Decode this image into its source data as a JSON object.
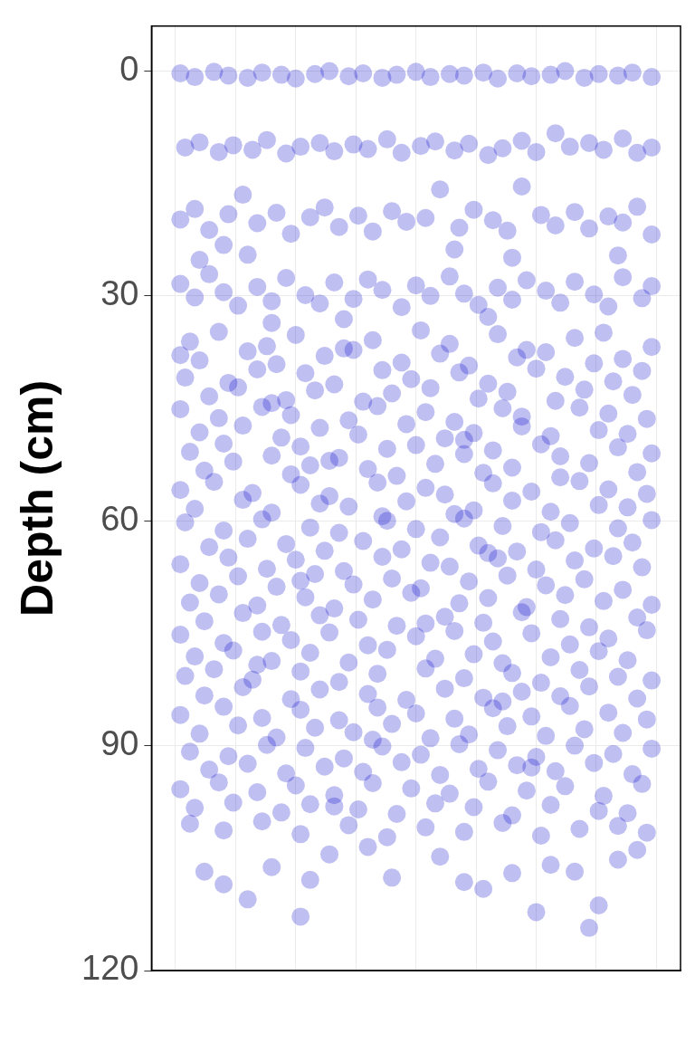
{
  "chart_data": {
    "type": "scatter",
    "ylabel": "Depth (cm)",
    "x": [
      -0.49,
      -0.46,
      -0.42,
      -0.39,
      -0.35,
      -0.32,
      -0.28,
      -0.25,
      -0.21,
      -0.18,
      -0.14,
      -0.11,
      -0.07,
      -0.04,
      0.0,
      0.03,
      0.07,
      0.1,
      0.14,
      0.17,
      0.21,
      0.24,
      0.28,
      0.31,
      0.35,
      0.38,
      0.42,
      0.45,
      0.49,
      -0.48,
      -0.45,
      -0.41,
      -0.38,
      -0.34,
      -0.31,
      -0.27,
      -0.24,
      -0.2,
      -0.17,
      -0.13,
      -0.1,
      -0.06,
      -0.03,
      0.01,
      0.04,
      0.08,
      0.11,
      0.15,
      0.18,
      0.22,
      0.25,
      0.29,
      0.32,
      0.36,
      0.39,
      0.43,
      0.46,
      0.49,
      -0.49,
      -0.46,
      -0.43,
      -0.39,
      -0.36,
      -0.33,
      -0.29,
      -0.26,
      -0.22,
      -0.19,
      -0.16,
      -0.12,
      -0.09,
      -0.05,
      -0.02,
      0.02,
      0.05,
      0.09,
      0.12,
      0.16,
      0.19,
      0.22,
      0.26,
      0.29,
      0.33,
      0.36,
      0.4,
      0.43,
      0.46,
      0.49,
      -0.35,
      0.08,
      0.2,
      -0.4,
      -0.49,
      -0.46,
      -0.43,
      -0.4,
      -0.37,
      -0.33,
      -0.3,
      -0.27,
      -0.23,
      -0.2,
      -0.17,
      -0.13,
      -0.1,
      -0.07,
      -0.03,
      0.0,
      0.03,
      0.07,
      0.1,
      0.13,
      0.17,
      0.2,
      0.23,
      0.27,
      0.3,
      0.33,
      0.37,
      0.4,
      0.43,
      0.47,
      0.49,
      -0.45,
      -0.15,
      0.15,
      0.42,
      -0.3,
      -0.47,
      -0.41,
      -0.31,
      -0.25,
      -0.15,
      -0.09,
      0.01,
      0.07,
      0.17,
      0.23,
      0.33,
      0.39,
      0.49,
      -0.45,
      -0.35,
      -0.29,
      -0.19,
      -0.13,
      -0.03,
      0.05,
      0.11,
      0.21,
      0.27,
      0.37,
      0.43,
      -0.49,
      -0.48,
      -0.39,
      -0.33,
      -0.23,
      -0.17,
      -0.07,
      -0.01,
      0.09,
      0.15,
      0.25,
      0.31,
      0.41,
      0.47,
      -0.43,
      -0.37,
      -0.27,
      -0.21,
      -0.11,
      -0.05,
      0.03,
      0.13,
      0.19,
      0.29,
      0.35,
      0.45,
      -0.3,
      -0.49,
      -0.41,
      -0.32,
      -0.26,
      -0.14,
      -0.08,
      0.02,
      0.08,
      0.18,
      0.22,
      0.34,
      0.4,
      0.48,
      -0.45,
      -0.36,
      -0.28,
      -0.2,
      -0.12,
      -0.02,
      0.06,
      0.12,
      0.22,
      0.28,
      0.38,
      0.44,
      0.1,
      -0.47,
      -0.4,
      -0.3,
      -0.24,
      -0.16,
      -0.06,
      0.0,
      0.1,
      0.16,
      0.26,
      0.3,
      0.42,
      0.49,
      -0.44,
      -0.38,
      -0.26,
      -0.22,
      -0.1,
      -0.04,
      0.04,
      0.14,
      0.2,
      0.3,
      0.36,
      0.46,
      -0.18,
      -0.49,
      -0.42,
      -0.34,
      -0.24,
      -0.18,
      -0.08,
      0.02,
      0.06,
      0.16,
      0.24,
      0.34,
      0.4,
      0.48,
      -0.46,
      -0.36,
      -0.3,
      -0.2,
      -0.14,
      -0.02,
      0.08,
      0.12,
      0.2,
      0.28,
      0.38,
      0.44,
      -0.07,
      -0.48,
      -0.4,
      -0.32,
      -0.22,
      -0.16,
      -0.06,
      0.0,
      0.1,
      0.18,
      0.26,
      0.32,
      0.42,
      0.49,
      -0.43,
      -0.35,
      -0.27,
      -0.19,
      -0.11,
      -0.03,
      0.05,
      0.13,
      0.21,
      0.29,
      0.37,
      0.45,
      0.15,
      -0.49,
      -0.39,
      -0.31,
      -0.25,
      -0.15,
      -0.07,
      0.03,
      0.07,
      0.17,
      0.25,
      0.33,
      0.41,
      0.47,
      -0.45,
      -0.37,
      -0.29,
      -0.21,
      -0.13,
      -0.05,
      0.01,
      0.11,
      0.19,
      0.27,
      0.35,
      0.43,
      -0.24,
      -0.47,
      -0.41,
      -0.33,
      -0.23,
      -0.17,
      -0.09,
      -0.01,
      0.09,
      0.15,
      0.23,
      0.31,
      0.39,
      0.49,
      -0.44,
      -0.36,
      -0.28,
      -0.2,
      -0.12,
      -0.04,
      0.06,
      0.14,
      0.22,
      0.3,
      0.36,
      0.46,
      0.02,
      -0.49,
      -0.4,
      -0.32,
      -0.26,
      -0.18,
      -0.1,
      0.0,
      0.08,
      0.16,
      0.24,
      0.32,
      0.4,
      0.48,
      -0.46,
      -0.38,
      -0.3,
      -0.22,
      -0.14,
      -0.06,
      0.04,
      0.12,
      0.18,
      0.28,
      0.38,
      0.44,
      -0.33,
      -0.48,
      -0.42,
      -0.34,
      -0.24,
      -0.16,
      -0.08,
      0.02,
      0.1,
      0.2,
      0.26,
      0.34,
      0.42,
      0.49,
      -0.44,
      -0.36,
      -0.26,
      -0.2,
      -0.1,
      -0.02,
      0.06,
      0.14,
      0.22,
      0.3,
      0.36,
      0.46,
      0.18,
      -0.49,
      -0.4,
      -0.32,
      -0.24,
      -0.16,
      -0.08,
      0.0,
      0.08,
      0.16,
      0.24,
      0.32,
      0.4,
      0.48,
      -0.45,
      -0.37,
      -0.29,
      -0.21,
      -0.13,
      -0.05,
      0.03,
      0.11,
      0.19,
      0.27,
      0.35,
      0.43,
      -0.09,
      -0.47,
      -0.39,
      -0.31,
      -0.23,
      -0.15,
      -0.07,
      0.01,
      0.09,
      0.17,
      0.25,
      0.33,
      0.41,
      0.49,
      -0.43,
      -0.35,
      -0.27,
      -0.19,
      -0.11,
      -0.03,
      0.05,
      0.13,
      0.21,
      0.29,
      0.37,
      0.45,
      0.24,
      -0.49,
      -0.41,
      -0.33,
      -0.25,
      -0.17,
      -0.09,
      -0.01,
      0.07,
      0.15,
      0.23,
      0.31,
      0.39,
      0.47,
      -0.46,
      -0.38,
      -0.28,
      -0.22,
      -0.12,
      -0.04,
      0.04,
      0.12,
      0.2,
      0.28,
      0.38,
      0.44,
      -0.17,
      -0.47,
      -0.4,
      -0.32,
      -0.24,
      -0.14,
      -0.06,
      0.02,
      0.1,
      0.18,
      0.26,
      0.34,
      0.42,
      0.48,
      -0.44,
      -0.4,
      -0.35,
      -0.3,
      -0.22,
      -0.18,
      -0.05,
      0.1,
      0.14,
      0.2,
      0.05,
      -0.1,
      0.28,
      0.33,
      0.38,
      0.42,
      0.46,
      -0.24,
      0.25,
      0.36
    ],
    "values": [
      0.3,
      0.8,
      0.1,
      0.6,
      0.9,
      0.2,
      0.5,
      1.0,
      0.4,
      0.0,
      0.7,
      0.3,
      0.9,
      0.5,
      0.1,
      0.8,
      0.4,
      0.6,
      0.2,
      1.0,
      0.3,
      0.7,
      0.5,
      0.0,
      0.9,
      0.4,
      0.6,
      0.2,
      0.8,
      10.2,
      9.5,
      10.8,
      9.9,
      10.5,
      9.2,
      11.0,
      10.1,
      9.6,
      10.7,
      9.8,
      10.4,
      9.1,
      10.9,
      10.0,
      9.4,
      10.6,
      9.7,
      11.2,
      10.3,
      9.3,
      10.8,
      8.3,
      10.1,
      9.6,
      10.5,
      9.0,
      10.9,
      10.2,
      19.8,
      18.4,
      21.2,
      19.1,
      16.5,
      20.3,
      18.9,
      21.7,
      19.5,
      18.2,
      20.8,
      19.3,
      21.4,
      18.7,
      20.1,
      19.6,
      15.8,
      20.9,
      18.5,
      19.9,
      21.3,
      15.4,
      19.2,
      20.6,
      18.8,
      21.0,
      19.4,
      20.2,
      18.1,
      21.8,
      24.5,
      23.8,
      24.9,
      23.2,
      28.4,
      30.2,
      27.1,
      29.5,
      31.3,
      28.8,
      30.7,
      27.6,
      29.9,
      31.0,
      28.2,
      30.4,
      27.8,
      29.2,
      31.5,
      28.6,
      30.0,
      27.4,
      29.7,
      31.2,
      28.9,
      30.5,
      27.9,
      29.3,
      30.9,
      28.1,
      29.8,
      31.4,
      27.5,
      30.3,
      28.7,
      25.2,
      33.1,
      32.8,
      24.6,
      33.6,
      36.1,
      34.8,
      36.7,
      35.2,
      37.0,
      35.9,
      34.6,
      36.4,
      35.1,
      37.2,
      35.6,
      34.9,
      36.8,
      38.6,
      37.4,
      39.1,
      38.0,
      37.2,
      38.9,
      37.7,
      39.3,
      38.2,
      37.5,
      39.0,
      38.4,
      37.9,
      40.9,
      41.6,
      39.8,
      40.3,
      41.8,
      39.9,
      41.1,
      40.2,
      41.7,
      39.7,
      40.8,
      41.4,
      40.0,
      43.4,
      42.2,
      43.9,
      42.6,
      44.1,
      43.0,
      42.3,
      43.7,
      42.8,
      44.0,
      42.5,
      43.2,
      44.3,
      45.1,
      46.3,
      44.8,
      45.9,
      46.6,
      44.7,
      45.5,
      46.8,
      45.0,
      46.1,
      44.9,
      45.7,
      46.4,
      48.2,
      47.3,
      48.9,
      47.6,
      48.5,
      47.1,
      49.0,
      48.3,
      47.4,
      48.7,
      47.9,
      48.4,
      49.2,
      50.8,
      49.7,
      51.3,
      50.1,
      51.6,
      50.4,
      49.9,
      51.1,
      50.6,
      49.8,
      51.4,
      50.2,
      51.0,
      53.3,
      52.1,
      53.8,
      52.6,
      53.1,
      54.0,
      52.4,
      53.6,
      52.9,
      54.2,
      52.3,
      53.5,
      52.0,
      55.9,
      54.8,
      56.3,
      55.2,
      56.7,
      54.9,
      55.6,
      56.5,
      55.0,
      56.1,
      54.7,
      55.8,
      56.4,
      58.4,
      57.2,
      58.9,
      57.7,
      58.1,
      57.4,
      59.1,
      58.6,
      57.3,
      58.8,
      57.9,
      58.2,
      59.4,
      60.2,
      61.3,
      59.8,
      60.9,
      61.6,
      60.0,
      61.1,
      59.7,
      60.7,
      61.5,
      60.3,
      61.0,
      59.9,
      63.5,
      62.4,
      63.1,
      64.0,
      62.7,
      63.8,
      62.2,
      63.3,
      64.1,
      62.6,
      63.7,
      62.9,
      64.3,
      65.8,
      64.9,
      66.4,
      65.2,
      66.7,
      64.8,
      65.6,
      66.1,
      65.0,
      66.5,
      65.3,
      64.7,
      66.2,
      68.3,
      67.4,
      68.8,
      67.1,
      68.5,
      67.7,
      69.0,
      68.1,
      67.3,
      68.6,
      67.8,
      69.2,
      68.0,
      70.9,
      69.8,
      71.3,
      70.2,
      71.7,
      70.5,
      69.6,
      71.0,
      70.3,
      71.5,
      69.9,
      70.7,
      71.2,
      73.4,
      72.3,
      73.9,
      72.6,
      73.2,
      74.0,
      72.8,
      73.6,
      72.2,
      73.1,
      74.2,
      72.9,
      73.7,
      75.2,
      76.3,
      74.8,
      75.9,
      74.9,
      76.6,
      75.4,
      74.7,
      76.1,
      75.0,
      76.5,
      75.7,
      74.6,
      78.1,
      77.3,
      78.7,
      77.6,
      78.9,
      77.2,
      78.4,
      77.8,
      79.0,
      78.2,
      77.4,
      78.6,
      79.2,
      80.7,
      79.8,
      81.2,
      80.1,
      81.5,
      80.4,
      79.7,
      81.0,
      80.3,
      81.6,
      79.9,
      80.8,
      81.3,
      83.3,
      82.2,
      83.8,
      82.5,
      83.1,
      83.9,
      82.4,
      83.6,
      82.8,
      83.4,
      82.1,
      83.7,
      84.1,
      85.9,
      84.8,
      86.3,
      85.2,
      86.6,
      84.9,
      85.7,
      86.4,
      85.0,
      86.1,
      84.7,
      85.6,
      86.5,
      88.4,
      87.3,
      88.9,
      87.6,
      88.2,
      87.1,
      89.0,
      88.5,
      87.4,
      88.7,
      87.8,
      88.3,
      89.2,
      90.8,
      91.4,
      89.9,
      90.3,
      91.7,
      90.1,
      91.2,
      89.8,
      90.6,
      91.5,
      90.0,
      91.1,
      90.4,
      93.2,
      92.4,
      93.7,
      92.8,
      93.5,
      92.2,
      93.9,
      93.1,
      92.6,
      93.4,
      92.3,
      93.8,
      92.9,
      95.8,
      94.9,
      96.2,
      95.3,
      96.6,
      95.0,
      95.7,
      96.4,
      94.8,
      96.0,
      95.4,
      96.7,
      95.1,
      98.3,
      97.6,
      98.9,
      97.8,
      98.5,
      99.1,
      97.7,
      98.2,
      99.3,
      97.9,
      98.7,
      99.0,
      98.1,
      100.4,
      101.3,
      100.1,
      101.8,
      100.6,
      102.2,
      100.9,
      101.5,
      100.3,
      102.0,
      101.1,
      100.7,
      101.6,
      106.8,
      108.5,
      110.5,
      106.2,
      107.9,
      104.5,
      107.6,
      108.2,
      109.1,
      107.0,
      104.8,
      103.5,
      105.9,
      106.8,
      111.3,
      105.2,
      103.9,
      112.8,
      112.2,
      114.3
    ],
    "color": "#0000CD",
    "xlim": [
      -0.55,
      0.55
    ],
    "xticks": [
      -0.5,
      -0.375,
      -0.25,
      -0.125,
      0,
      0.125,
      0.25,
      0.375,
      0.5
    ],
    "ylim": [
      120,
      -6
    ],
    "yticks": [
      0,
      30,
      60,
      90,
      120
    ],
    "grid": true,
    "tick_labels": "y"
  }
}
